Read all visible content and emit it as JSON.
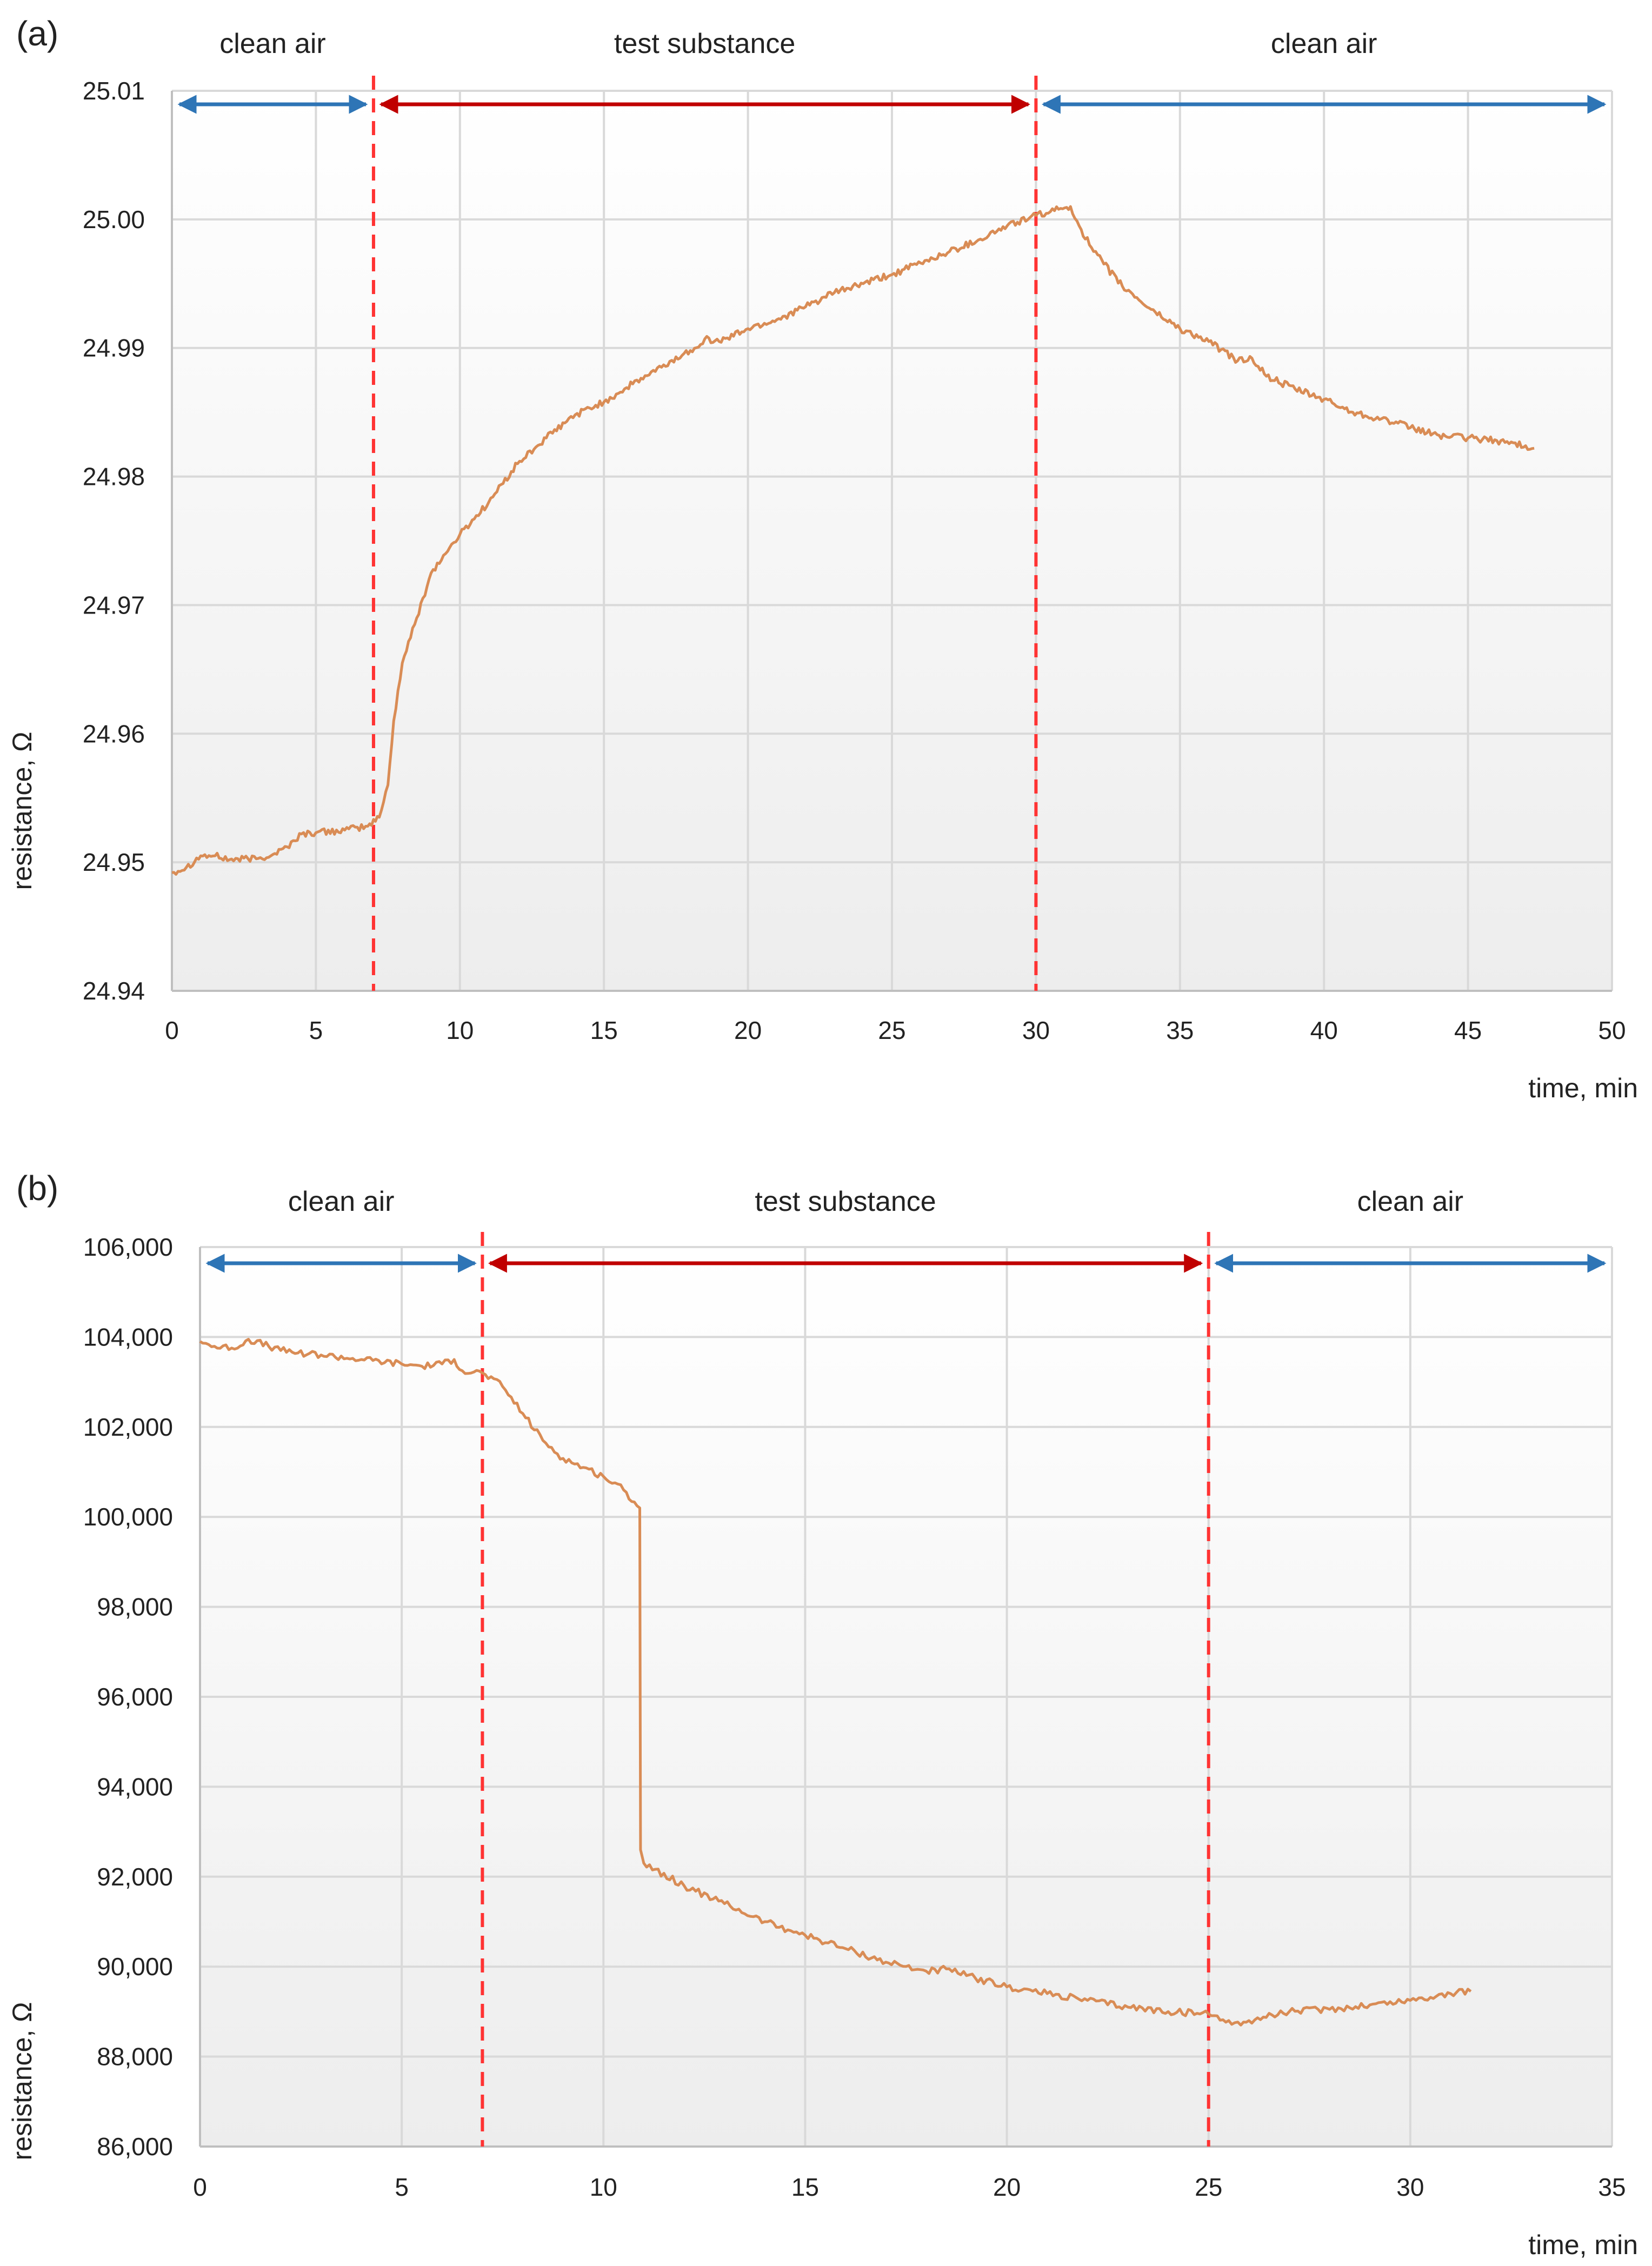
{
  "colors": {
    "series": "#D98C55",
    "clean_air_arrow": "#2E75B6",
    "test_arrow": "#C00000",
    "boundary_line": "#FF3333",
    "gridline": "#D9D9D9",
    "axis_line": "#BFBFBF",
    "plot_bg_top": "#FFFFFF",
    "plot_bg_bottom": "#EDEDED"
  },
  "chart_data": [
    {
      "panel_label": "(a)",
      "type": "line",
      "xlabel": "time, min",
      "ylabel": "resistance, Ω",
      "xlim": [
        0,
        50
      ],
      "ylim": [
        24.94,
        25.01
      ],
      "xticks": [
        0,
        5,
        10,
        15,
        20,
        25,
        30,
        35,
        40,
        45,
        50
      ],
      "yticks": [
        24.94,
        24.95,
        24.96,
        24.97,
        24.98,
        24.99,
        25.0,
        25.01
      ],
      "xtick_labels": [
        "0",
        "5",
        "10",
        "15",
        "20",
        "25",
        "30",
        "35",
        "40",
        "45",
        "50"
      ],
      "ytick_labels": [
        "24.94",
        "24.95",
        "24.96",
        "24.97",
        "24.98",
        "24.99",
        "25.00",
        "25.01"
      ],
      "grid": true,
      "boundaries": [
        7,
        30
      ],
      "phases": [
        {
          "label": "clean air",
          "from": 0,
          "to": 7,
          "kind": "clean"
        },
        {
          "label": "test substance",
          "from": 7,
          "to": 30,
          "kind": "test"
        },
        {
          "label": "clean air",
          "from": 30,
          "to": 50,
          "kind": "clean"
        }
      ],
      "series": [
        {
          "name": "resistance",
          "x": [
            0,
            0.5,
            1,
            1.5,
            2,
            3,
            3.5,
            4,
            4.5,
            5,
            6,
            6.8,
            7.2,
            7.5,
            7.7,
            8,
            8.5,
            9,
            9.5,
            10,
            11,
            12,
            13,
            14,
            15,
            16,
            17,
            18,
            18.5,
            19,
            20,
            21,
            22,
            23,
            24,
            25,
            26,
            27,
            28,
            29,
            30,
            30.5,
            31,
            31.2,
            31.5,
            32,
            33,
            34,
            35,
            36,
            37,
            37.5,
            38,
            39,
            40,
            41,
            42,
            43,
            44,
            45,
            46,
            47,
            47.3
          ],
          "y": [
            24.9492,
            24.9496,
            24.9505,
            24.9505,
            24.9502,
            24.9503,
            24.9506,
            24.9512,
            24.9522,
            24.9523,
            24.9525,
            24.9528,
            24.9535,
            24.956,
            24.961,
            24.9655,
            24.969,
            24.9725,
            24.974,
            24.9755,
            24.978,
            24.981,
            24.983,
            24.9848,
            24.9858,
            24.9872,
            24.9885,
            24.9898,
            24.9907,
            24.9905,
            24.9915,
            24.9922,
            24.9932,
            24.9943,
            24.995,
            24.9957,
            24.9966,
            24.9975,
            24.9984,
            24.9995,
            25.0003,
            25.0006,
            25.0009,
            25.001,
            24.9995,
            24.9975,
            24.9948,
            24.993,
            24.9915,
            24.9905,
            24.989,
            24.9892,
            24.9878,
            24.9868,
            24.986,
            24.985,
            24.9845,
            24.9838,
            24.9832,
            24.983,
            24.9828,
            24.9824,
            24.9822
          ]
        }
      ]
    },
    {
      "panel_label": "(b)",
      "type": "line",
      "xlabel": "time, min",
      "ylabel": "resistance, Ω",
      "xlim": [
        0,
        35
      ],
      "ylim": [
        86000,
        106000
      ],
      "xticks": [
        0,
        5,
        10,
        15,
        20,
        25,
        30,
        35
      ],
      "yticks": [
        86000,
        88000,
        90000,
        92000,
        94000,
        96000,
        98000,
        100000,
        102000,
        104000,
        106000
      ],
      "xtick_labels": [
        "0",
        "5",
        "10",
        "15",
        "20",
        "25",
        "30",
        "35"
      ],
      "ytick_labels": [
        "86,000",
        "88,000",
        "90,000",
        "92,000",
        "94,000",
        "96,000",
        "98,000",
        "100,000",
        "102,000",
        "104,000",
        "106,000"
      ],
      "grid": true,
      "boundaries": [
        7,
        25
      ],
      "phases": [
        {
          "label": "clean air",
          "from": 0,
          "to": 7,
          "kind": "clean"
        },
        {
          "label": "test substance",
          "from": 7,
          "to": 25,
          "kind": "test"
        },
        {
          "label": "clean air",
          "from": 25,
          "to": 35,
          "kind": "clean"
        }
      ],
      "series": [
        {
          "name": "resistance",
          "x": [
            0,
            0.5,
            1,
            1.2,
            2,
            3,
            4,
            5,
            5.5,
            6,
            6.3,
            6.5,
            7,
            7.5,
            8,
            8.5,
            9,
            9.5,
            10,
            10.5,
            10.9,
            10.92,
            11,
            12,
            13,
            14,
            15,
            16,
            17,
            18,
            18.5,
            19,
            20,
            21,
            22,
            23,
            24,
            25,
            25.5,
            25.8,
            26,
            27,
            28,
            29,
            30,
            31,
            31.5
          ],
          "y": [
            103900,
            103750,
            103800,
            103950,
            103700,
            103600,
            103500,
            103400,
            103350,
            103400,
            103500,
            103250,
            103200,
            102900,
            102300,
            101700,
            101300,
            101100,
            100900,
            100600,
            100200,
            92600,
            92300,
            91800,
            91400,
            91000,
            90700,
            90400,
            90100,
            89900,
            89950,
            89800,
            89550,
            89400,
            89250,
            89100,
            89000,
            88950,
            88800,
            88700,
            88800,
            89000,
            89050,
            89150,
            89250,
            89400,
            89450
          ]
        }
      ]
    }
  ]
}
